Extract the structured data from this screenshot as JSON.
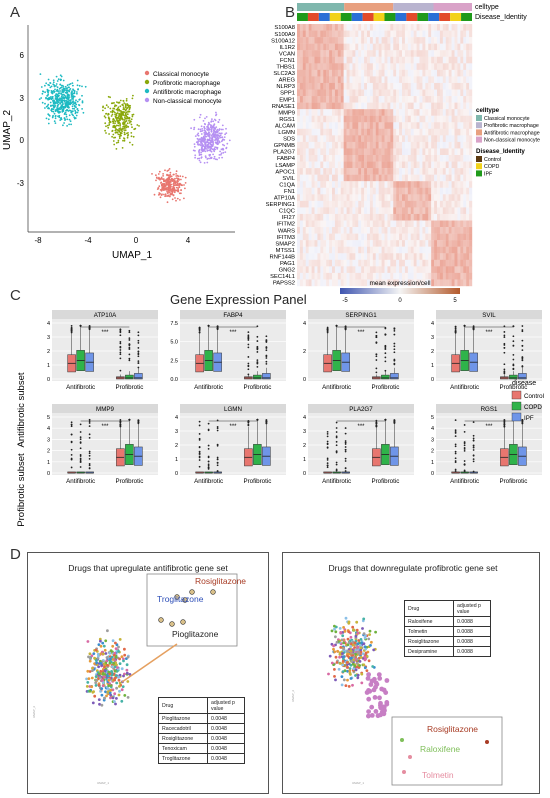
{
  "panels": {
    "A": {
      "label": "A",
      "xlabel": "UMAP_1",
      "ylabel": "UMAP_2",
      "xticks": [
        "-8",
        "-4",
        "0",
        "4"
      ],
      "yticks": [
        "6",
        "3",
        "0",
        "-3"
      ],
      "legend": [
        {
          "name": "Classical monocyte",
          "color": "#e8766f"
        },
        {
          "name": "Profibrotic macrophage",
          "color": "#8aa80b"
        },
        {
          "name": "Antifibrotic macrophage",
          "color": "#1ebac2"
        },
        {
          "name": "Non-classical monocyte",
          "color": "#b590f2"
        }
      ]
    },
    "B": {
      "label": "B",
      "top_labels": [
        "celltype",
        "Disease_Identity"
      ],
      "genes": [
        "S100A8",
        "S100A9",
        "S100A12",
        "IL1R2",
        "VCAN",
        "FCN1",
        "THBS1",
        "SLC2A3",
        "AREG",
        "NLRP3",
        "SPP1",
        "EMP1",
        "RNASE1",
        "MMP9",
        "RGS1",
        "ALCAM",
        "LGMN",
        "SDS",
        "GPNMB",
        "PLA2G7",
        "FABP4",
        "LSAMP",
        "APOC1",
        "SVIL",
        "C1QA",
        "FN1",
        "ATP10A",
        "SERPING1",
        "C1QC",
        "IFI27",
        "IFITM2",
        "WARS",
        "IFITM3",
        "SMAP2",
        "MTSS1",
        "RNF144B",
        "PAG1",
        "GNG2",
        "SEC14L1",
        "PAPSS2"
      ],
      "legend_celltype_title": "celltype",
      "legend_celltype": [
        {
          "name": "Classical monocyte",
          "color": "#7fb7ad"
        },
        {
          "name": "Profibrotic macrophage",
          "color": "#b9b4cf"
        },
        {
          "name": "Antifibrotic macrophage",
          "color": "#e8a07f"
        },
        {
          "name": "Non-classical monocyte",
          "color": "#d9a2c8"
        }
      ],
      "legend_disease_title": "Disease_Identity",
      "legend_disease": [
        {
          "name": "Control",
          "color": "#5c3a12"
        },
        {
          "name": "COPD",
          "color": "#f2d21a"
        },
        {
          "name": "IPF",
          "color": "#1f9a1a"
        }
      ],
      "colorbar_title": "mean expression/cell",
      "colorbar_ticks": [
        "-5",
        "0",
        "5"
      ]
    },
    "C": {
      "label": "C",
      "title": "Gene Expression Panel",
      "row_labels": [
        "Antifibrotic subset",
        "Profibrotic subset"
      ],
      "x_categories": [
        "Antifibrotic",
        "Profibrotic"
      ],
      "significance": "***",
      "legend_title": "disease",
      "legend": [
        {
          "name": "Control",
          "color": "#e8766f"
        },
        {
          "name": "COPD",
          "color": "#2fb34a"
        },
        {
          "name": "IPF",
          "color": "#6f95e8"
        }
      ],
      "facets": [
        {
          "gene": "ATP10A",
          "yticks": [
            "0",
            "1",
            "2",
            "3",
            "4"
          ],
          "ymax": 4
        },
        {
          "gene": "FABP4",
          "yticks": [
            "0.0",
            "2.5",
            "5.0",
            "7.5"
          ],
          "ymax": 8.5
        },
        {
          "gene": "SERPING1",
          "yticks": [
            "0",
            "2",
            "4"
          ],
          "ymax": 5
        },
        {
          "gene": "SVIL",
          "yticks": [
            "0",
            "1",
            "2",
            "3",
            "4"
          ],
          "ymax": 4.5
        },
        {
          "gene": "MMP9",
          "yticks": [
            "0",
            "1",
            "2",
            "3",
            "4",
            "5"
          ],
          "ymax": 5.5
        },
        {
          "gene": "LGMN",
          "yticks": [
            "0",
            "1",
            "2",
            "3",
            "4"
          ],
          "ymax": 4.5
        },
        {
          "gene": "PLA2G7",
          "yticks": [
            "0",
            "1",
            "2",
            "3",
            "4"
          ],
          "ymax": 4.5
        },
        {
          "gene": "RGS1",
          "yticks": [
            "0",
            "1",
            "2",
            "3",
            "4",
            "5"
          ],
          "ymax": 5.5
        }
      ]
    },
    "D": {
      "label": "D",
      "left": {
        "title": "Drugs that upregulate antifibrotic gene set",
        "callouts": [
          "Rosiglitazone",
          "Troglitazone",
          "Pioglitazone"
        ],
        "table_header": [
          "Drug",
          "adjusted p value"
        ],
        "table_rows": [
          [
            "Pioglitazone",
            "0.0048"
          ],
          [
            "Racecadotril",
            "0.0048"
          ],
          [
            "Rosiglitazone",
            "0.0048"
          ],
          [
            "Tenoxicam",
            "0.0048"
          ],
          [
            "Troglitazone",
            "0.0048"
          ]
        ]
      },
      "right": {
        "title": "Drugs that downregulate profibrotic gene set",
        "callouts": [
          "Rosiglitazone",
          "Raloxifene",
          "Tolmetin"
        ],
        "table_header": [
          "Drug",
          "adjusted p value"
        ],
        "table_rows": [
          [
            "Raloxifene",
            "0.0088"
          ],
          [
            "Tolmetin",
            "0.0088"
          ],
          [
            "Rosiglitazone",
            "0.0088"
          ],
          [
            "Desipramine",
            "0.0088"
          ]
        ]
      }
    }
  }
}
